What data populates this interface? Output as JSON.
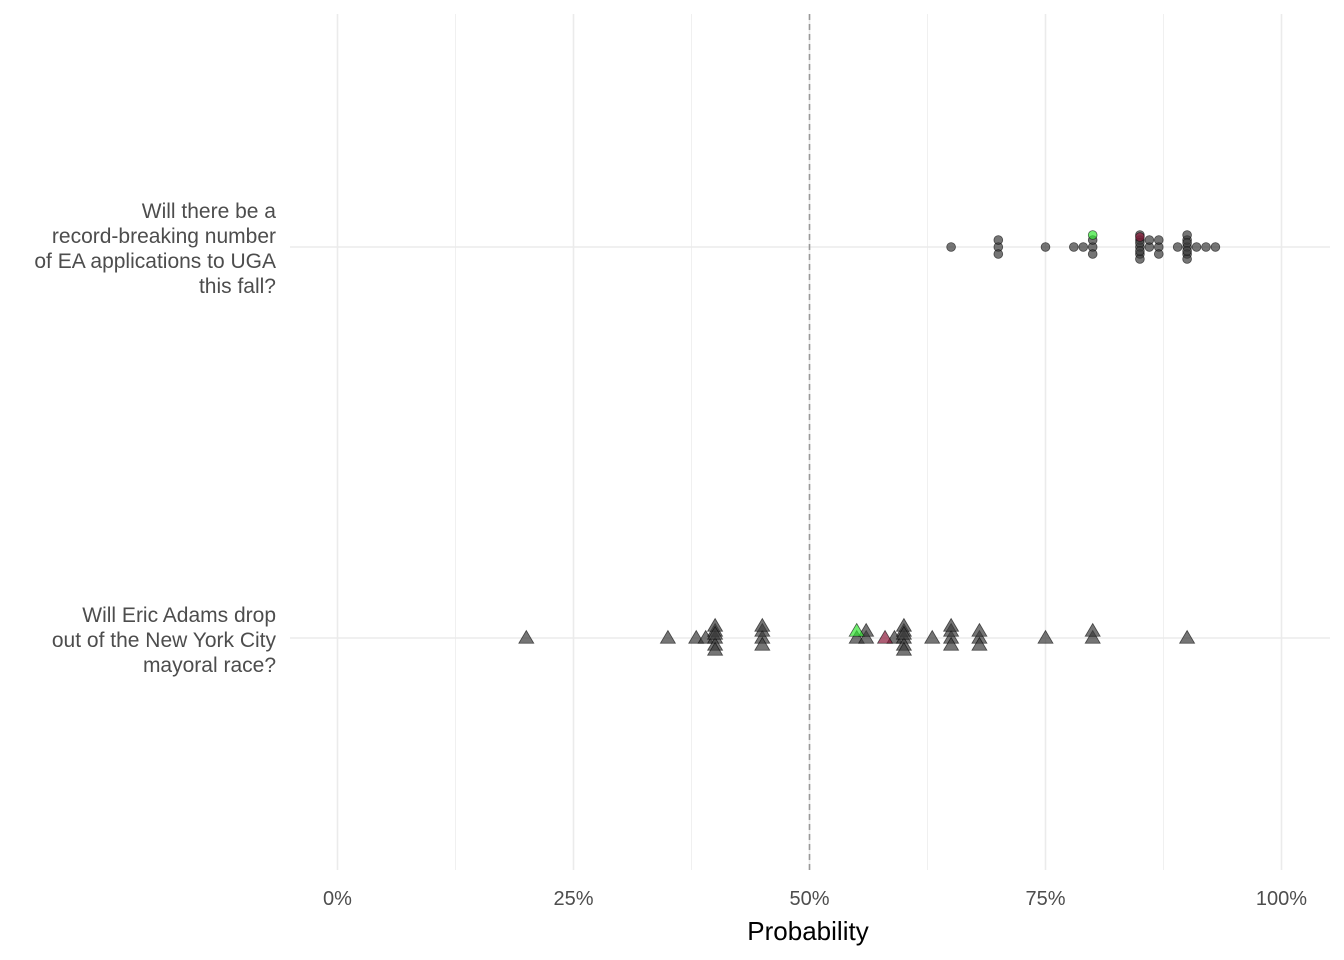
{
  "chart_data": {
    "type": "scatter",
    "xlabel": "Probability",
    "ylabel": "",
    "xlim": [
      0,
      100
    ],
    "x_ticks": [
      "0%",
      "25%",
      "50%",
      "75%",
      "100%"
    ],
    "x_tick_values": [
      0,
      25,
      50,
      75,
      100
    ],
    "reference_line": {
      "x": 50,
      "style": "dashed"
    },
    "grid": true,
    "legend": "none",
    "colors": {
      "point": "#3a3a3a",
      "highlight_green": "#33e633",
      "highlight_red": "#8b1a3a"
    },
    "questions": [
      {
        "label_lines": [
          "Will there be a",
          "record-breaking number",
          "of EA applications to UGA",
          "this fall?"
        ],
        "marker": "circle",
        "values": [
          65,
          70,
          70,
          70,
          75,
          78,
          79,
          80,
          80,
          80,
          85,
          85,
          85,
          85,
          85,
          85,
          85,
          86,
          86,
          87,
          87,
          87,
          89,
          90,
          90,
          90,
          90,
          90,
          90,
          90,
          91,
          92,
          93
        ],
        "highlights": [
          {
            "x": 80,
            "color": "green"
          },
          {
            "x": 85,
            "color": "red"
          }
        ]
      },
      {
        "label_lines": [
          "Will Eric Adams drop",
          "out of the New York City",
          "mayoral race?"
        ],
        "marker": "triangle",
        "values": [
          20,
          35,
          38,
          39,
          40,
          40,
          40,
          40,
          40,
          40,
          45,
          45,
          45,
          45,
          55,
          56,
          56,
          59,
          60,
          60,
          60,
          60,
          60,
          60,
          63,
          65,
          65,
          65,
          65,
          68,
          68,
          68,
          75,
          80,
          80,
          90
        ],
        "highlights": [
          {
            "x": 55,
            "color": "green"
          },
          {
            "x": 58,
            "color": "red"
          }
        ]
      }
    ]
  }
}
